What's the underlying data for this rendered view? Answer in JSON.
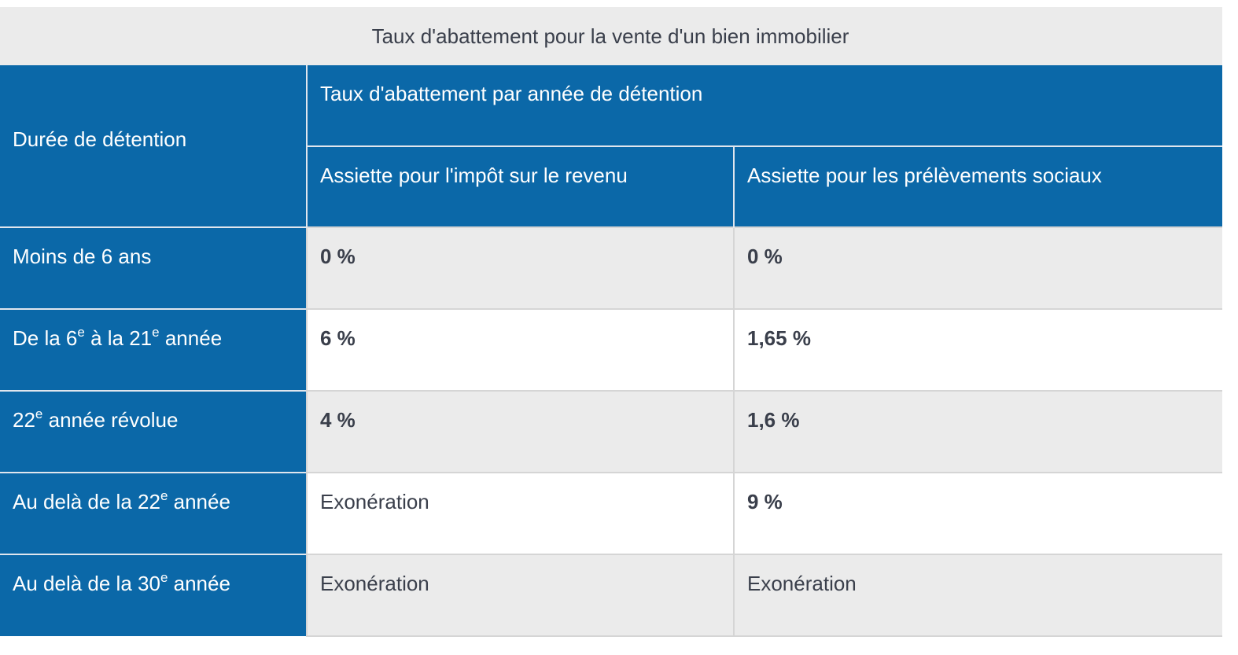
{
  "table": {
    "caption": "Taux d'abattement pour la vente d'un bien immobilier",
    "header": {
      "duration_label": "Durée de détention",
      "group_label": "Taux d'abattement par année de détention",
      "col_income_tax": "Assiette pour l'impôt sur le revenu",
      "col_social": "Assiette pour les prélèvements sociaux"
    },
    "rows": [
      {
        "duration_pre": "Moins de 6 ans",
        "income_tax": "0 %",
        "social": "0 %"
      },
      {
        "duration_pre": "De la 6",
        "sup1": "e",
        "duration_mid": " à la 21",
        "sup2": "e",
        "duration_post": " année",
        "income_tax": "6 %",
        "social": "1,65 %"
      },
      {
        "duration_pre": "22",
        "sup1": "e",
        "duration_post": " année révolue",
        "income_tax": "4 %",
        "social": "1,6 %"
      },
      {
        "duration_pre": "Au delà de la 22",
        "sup1": "e",
        "duration_post": " année",
        "income_tax": "Exonération",
        "social": "9 %"
      },
      {
        "duration_pre": "Au delà de la 30",
        "sup1": "e",
        "duration_post": " année",
        "income_tax": "Exonération",
        "social": "Exonération"
      }
    ],
    "colors": {
      "header_blue": "#0b68a8",
      "stripe_gray": "#ebebeb",
      "text_dark": "#3a3f4b"
    }
  }
}
